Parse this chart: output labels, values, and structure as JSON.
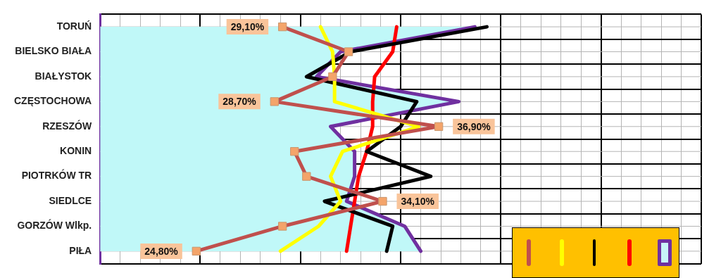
{
  "chart_data": {
    "type": "line",
    "orientation": "horizontal",
    "categories": [
      "TORUŃ",
      "BIELSKO BIAŁA",
      "BIAŁYSTOK",
      "CZĘSTOCHOWA",
      "RZESZÓW",
      "KONIN",
      "PIOTRKÓW TR",
      "SIEDLCE",
      "GORZÓW Wlkp.",
      "PIŁA"
    ],
    "series": [
      {
        "type": "area",
        "color": "#c0f8f8",
        "values": [
          38.7,
          32.0,
          30.8,
          37.9,
          31.5,
          32.7,
          32.7,
          32.3,
          35.2,
          36.0
        ]
      },
      {
        "color": "#7030a0",
        "values": [
          38.7,
          32.0,
          30.8,
          37.9,
          31.5,
          32.7,
          32.7,
          32.3,
          35.2,
          36.0
        ]
      },
      {
        "color": "#ff0000",
        "values": [
          34.8,
          34.6,
          33.7,
          33.6,
          33.6,
          33.3,
          32.9,
          32.7,
          32.5,
          32.3
        ]
      },
      {
        "color": "#000000",
        "values": [
          39.3,
          32.5,
          30.3,
          35.8,
          35.0,
          33.3,
          36.5,
          31.2,
          34.6,
          34.3
        ]
      },
      {
        "color": "#ffff00",
        "values": [
          31.0,
          31.6,
          31.7,
          31.7,
          35.9,
          32.1,
          31.5,
          32.0,
          30.9,
          29.0
        ]
      },
      {
        "color": "#c0504d",
        "marker": "square",
        "values": [
          29.1,
          32.4,
          31.6,
          28.7,
          36.9,
          29.7,
          30.3,
          34.1,
          29.1,
          24.8
        ],
        "value_labels": [
          "29,10%",
          null,
          null,
          "28,70%",
          "36,90%",
          null,
          null,
          "34,10%",
          null,
          "24,80%"
        ]
      }
    ],
    "xlim": [
      20,
      50
    ],
    "xticks": [
      {
        "value": 20,
        "label": null
      },
      {
        "value": 21,
        "label": null
      },
      {
        "value": 22,
        "label": null
      },
      {
        "value": 23,
        "label": null
      },
      {
        "value": 24,
        "label": null
      },
      {
        "value": 25,
        "label": null
      },
      {
        "value": 26,
        "label": null
      },
      {
        "value": 27,
        "label": null
      },
      {
        "value": 28,
        "label": null
      },
      {
        "value": 29,
        "label": null
      },
      {
        "value": 30,
        "label": null
      },
      {
        "value": 31,
        "label": null
      },
      {
        "value": 32,
        "label": null
      },
      {
        "value": 33,
        "label": null
      },
      {
        "value": 34,
        "label": null
      },
      {
        "value": 35,
        "label": null
      },
      {
        "value": 36,
        "label": null
      },
      {
        "value": 37,
        "label": null
      },
      {
        "value": 38,
        "label": null
      },
      {
        "value": 39,
        "label": null
      },
      {
        "value": 40,
        "label": null
      },
      {
        "value": 41,
        "label": null
      },
      {
        "value": 42,
        "label": null
      },
      {
        "value": 43,
        "label": null
      },
      {
        "value": 44,
        "label": null
      },
      {
        "value": 45,
        "label": null
      },
      {
        "value": 46,
        "label": null
      },
      {
        "value": 47,
        "label": null
      },
      {
        "value": 48,
        "label": null
      },
      {
        "value": 49,
        "label": null
      },
      {
        "value": 50,
        "label": null
      }
    ],
    "tick_labels": "y",
    "grid": true,
    "legend": false
  }
}
